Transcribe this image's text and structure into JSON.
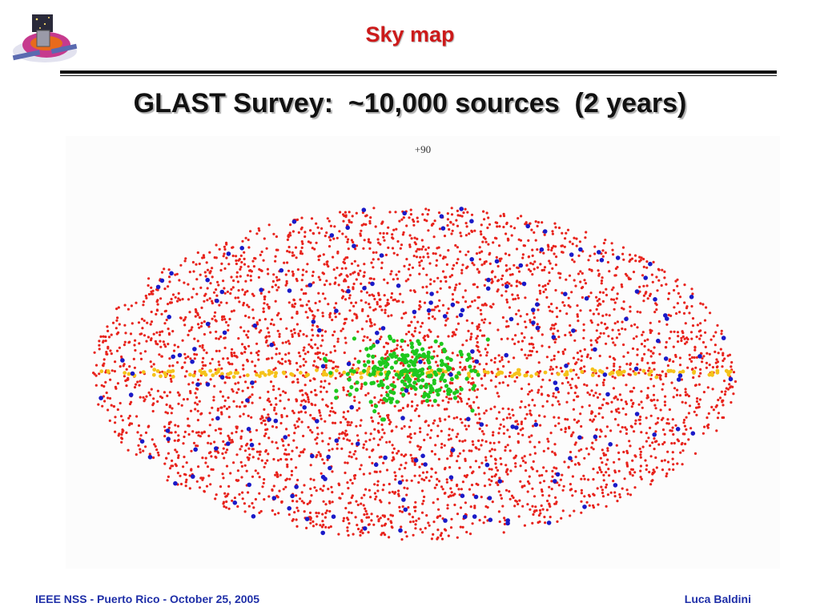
{
  "slide": {
    "title": "Sky map",
    "headline": "GLAST Survey:  ~10,000 sources  (2 years)",
    "footer_left": "IEEE NSS - Puerto Rico - October 25, 2005",
    "footer_right": "Luca Baldini"
  },
  "map": {
    "latitude_label": "+90",
    "projection": "all-sky ellipse (galactic coordinates)",
    "source_colors": {
      "dominant": "#e8231c",
      "secondary": "#1a1ac8",
      "galactic_center": "#1ec81e",
      "galactic_plane": "#f5c21a"
    }
  }
}
